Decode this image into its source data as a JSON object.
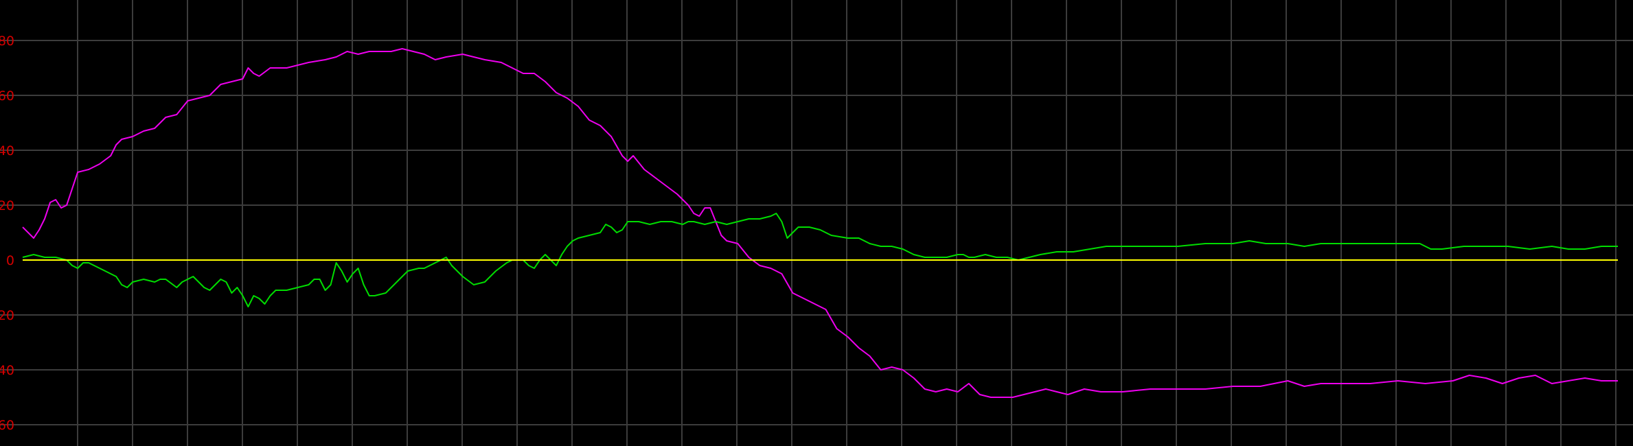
{
  "colors": {
    "background": "#000000",
    "grid": "#3c3c3c",
    "tick_labels": "#d40000",
    "zero_line": "#ffff00"
  },
  "chart_data": {
    "type": "line",
    "title": "",
    "xlabel": "",
    "ylabel": "",
    "grid": true,
    "legend": "none",
    "ylim": [
      -67,
      95
    ],
    "xlim": [
      0,
      290
    ],
    "y_ticks": [
      {
        "value": 80,
        "label": "80"
      },
      {
        "value": 60,
        "label": "60"
      },
      {
        "value": 40,
        "label": "40"
      },
      {
        "value": 20,
        "label": "20"
      },
      {
        "value": 0,
        "label": "0"
      },
      {
        "value": -20,
        "label": "20"
      },
      {
        "value": -40,
        "label": "40"
      },
      {
        "value": -60,
        "label": "60"
      }
    ],
    "x_grid_count": 29,
    "series": [
      {
        "color": "#ee00ee",
        "points": [
          [
            0,
            12
          ],
          [
            1,
            10
          ],
          [
            2,
            8
          ],
          [
            3,
            11
          ],
          [
            4,
            15
          ],
          [
            5,
            21
          ],
          [
            6,
            22
          ],
          [
            7,
            19
          ],
          [
            8,
            20
          ],
          [
            9,
            26
          ],
          [
            10,
            32
          ],
          [
            12,
            33
          ],
          [
            14,
            35
          ],
          [
            16,
            38
          ],
          [
            17,
            42
          ],
          [
            18,
            44
          ],
          [
            20,
            45
          ],
          [
            22,
            47
          ],
          [
            24,
            48
          ],
          [
            26,
            52
          ],
          [
            28,
            53
          ],
          [
            30,
            58
          ],
          [
            32,
            59
          ],
          [
            34,
            60
          ],
          [
            36,
            64
          ],
          [
            38,
            65
          ],
          [
            40,
            66
          ],
          [
            41,
            70
          ],
          [
            42,
            68
          ],
          [
            43,
            67
          ],
          [
            45,
            70
          ],
          [
            48,
            70
          ],
          [
            50,
            71
          ],
          [
            52,
            72
          ],
          [
            55,
            73
          ],
          [
            57,
            74
          ],
          [
            59,
            76
          ],
          [
            61,
            75
          ],
          [
            63,
            76
          ],
          [
            65,
            76
          ],
          [
            67,
            76
          ],
          [
            69,
            77
          ],
          [
            71,
            76
          ],
          [
            73,
            75
          ],
          [
            75,
            73
          ],
          [
            77,
            74
          ],
          [
            80,
            75
          ],
          [
            82,
            74
          ],
          [
            84,
            73
          ],
          [
            87,
            72
          ],
          [
            89,
            70
          ],
          [
            91,
            68
          ],
          [
            93,
            68
          ],
          [
            95,
            65
          ],
          [
            97,
            61
          ],
          [
            99,
            59
          ],
          [
            101,
            56
          ],
          [
            103,
            51
          ],
          [
            105,
            49
          ],
          [
            107,
            45
          ],
          [
            109,
            38
          ],
          [
            110,
            36
          ],
          [
            111,
            38
          ],
          [
            113,
            33
          ],
          [
            115,
            30
          ],
          [
            117,
            27
          ],
          [
            119,
            24
          ],
          [
            121,
            20
          ],
          [
            122,
            17
          ],
          [
            123,
            16
          ],
          [
            124,
            19
          ],
          [
            125,
            19
          ],
          [
            126,
            14
          ],
          [
            127,
            9
          ],
          [
            128,
            7
          ],
          [
            130,
            6
          ],
          [
            132,
            1
          ],
          [
            134,
            -2
          ],
          [
            136,
            -3
          ],
          [
            138,
            -5
          ],
          [
            140,
            -12
          ],
          [
            142,
            -14
          ],
          [
            144,
            -16
          ],
          [
            146,
            -18
          ],
          [
            148,
            -25
          ],
          [
            150,
            -28
          ],
          [
            152,
            -32
          ],
          [
            154,
            -35
          ],
          [
            156,
            -40
          ],
          [
            158,
            -39
          ],
          [
            160,
            -40
          ],
          [
            162,
            -43
          ],
          [
            164,
            -47
          ],
          [
            166,
            -48
          ],
          [
            168,
            -47
          ],
          [
            170,
            -48
          ],
          [
            172,
            -45
          ],
          [
            174,
            -49
          ],
          [
            176,
            -50
          ],
          [
            180,
            -50
          ],
          [
            184,
            -48
          ],
          [
            186,
            -47
          ],
          [
            188,
            -48
          ],
          [
            190,
            -49
          ],
          [
            193,
            -47
          ],
          [
            196,
            -48
          ],
          [
            200,
            -48
          ],
          [
            205,
            -47
          ],
          [
            210,
            -47
          ],
          [
            215,
            -47
          ],
          [
            220,
            -46
          ],
          [
            225,
            -46
          ],
          [
            230,
            -44
          ],
          [
            233,
            -46
          ],
          [
            236,
            -45
          ],
          [
            240,
            -45
          ],
          [
            245,
            -45
          ],
          [
            250,
            -44
          ],
          [
            255,
            -45
          ],
          [
            260,
            -44
          ],
          [
            263,
            -42
          ],
          [
            266,
            -43
          ],
          [
            269,
            -45
          ],
          [
            272,
            -43
          ],
          [
            275,
            -42
          ],
          [
            278,
            -45
          ],
          [
            281,
            -44
          ],
          [
            284,
            -43
          ],
          [
            287,
            -44
          ],
          [
            290,
            -44
          ]
        ]
      },
      {
        "color": "#00dd00",
        "points": [
          [
            0,
            1
          ],
          [
            2,
            2
          ],
          [
            4,
            1
          ],
          [
            6,
            1
          ],
          [
            8,
            0
          ],
          [
            9,
            -2
          ],
          [
            10,
            -3
          ],
          [
            11,
            -1
          ],
          [
            12,
            -1
          ],
          [
            13,
            -2
          ],
          [
            15,
            -4
          ],
          [
            17,
            -6
          ],
          [
            18,
            -9
          ],
          [
            19,
            -10
          ],
          [
            20,
            -8
          ],
          [
            22,
            -7
          ],
          [
            24,
            -8
          ],
          [
            25,
            -7
          ],
          [
            26,
            -7
          ],
          [
            28,
            -10
          ],
          [
            29,
            -8
          ],
          [
            30,
            -7
          ],
          [
            31,
            -6
          ],
          [
            32,
            -8
          ],
          [
            33,
            -10
          ],
          [
            34,
            -11
          ],
          [
            35,
            -9
          ],
          [
            36,
            -7
          ],
          [
            37,
            -8
          ],
          [
            38,
            -12
          ],
          [
            39,
            -10
          ],
          [
            40,
            -13
          ],
          [
            41,
            -17
          ],
          [
            42,
            -13
          ],
          [
            43,
            -14
          ],
          [
            44,
            -16
          ],
          [
            45,
            -13
          ],
          [
            46,
            -11
          ],
          [
            48,
            -11
          ],
          [
            50,
            -10
          ],
          [
            52,
            -9
          ],
          [
            53,
            -7
          ],
          [
            54,
            -7
          ],
          [
            55,
            -11
          ],
          [
            56,
            -9
          ],
          [
            57,
            -1
          ],
          [
            58,
            -4
          ],
          [
            59,
            -8
          ],
          [
            60,
            -5
          ],
          [
            61,
            -3
          ],
          [
            62,
            -9
          ],
          [
            63,
            -13
          ],
          [
            64,
            -13
          ],
          [
            66,
            -12
          ],
          [
            68,
            -8
          ],
          [
            70,
            -4
          ],
          [
            72,
            -3
          ],
          [
            73,
            -3
          ],
          [
            74,
            -2
          ],
          [
            75,
            -1
          ],
          [
            76,
            0
          ],
          [
            77,
            1
          ],
          [
            78,
            -2
          ],
          [
            80,
            -6
          ],
          [
            82,
            -9
          ],
          [
            84,
            -8
          ],
          [
            86,
            -4
          ],
          [
            88,
            -1
          ],
          [
            89,
            0
          ],
          [
            90,
            0
          ],
          [
            91,
            0
          ],
          [
            92,
            -2
          ],
          [
            93,
            -3
          ],
          [
            94,
            0
          ],
          [
            95,
            2
          ],
          [
            96,
            0
          ],
          [
            97,
            -2
          ],
          [
            98,
            2
          ],
          [
            99,
            5
          ],
          [
            100,
            7
          ],
          [
            101,
            8
          ],
          [
            103,
            9
          ],
          [
            105,
            10
          ],
          [
            106,
            13
          ],
          [
            107,
            12
          ],
          [
            108,
            10
          ],
          [
            109,
            11
          ],
          [
            110,
            14
          ],
          [
            112,
            14
          ],
          [
            114,
            13
          ],
          [
            116,
            14
          ],
          [
            118,
            14
          ],
          [
            120,
            13
          ],
          [
            121,
            14
          ],
          [
            122,
            14
          ],
          [
            124,
            13
          ],
          [
            126,
            14
          ],
          [
            128,
            13
          ],
          [
            130,
            14
          ],
          [
            132,
            15
          ],
          [
            134,
            15
          ],
          [
            136,
            16
          ],
          [
            137,
            17
          ],
          [
            138,
            14
          ],
          [
            139,
            8
          ],
          [
            140,
            10
          ],
          [
            141,
            12
          ],
          [
            143,
            12
          ],
          [
            145,
            11
          ],
          [
            147,
            9
          ],
          [
            150,
            8
          ],
          [
            152,
            8
          ],
          [
            154,
            6
          ],
          [
            156,
            5
          ],
          [
            158,
            5
          ],
          [
            160,
            4
          ],
          [
            162,
            2
          ],
          [
            164,
            1
          ],
          [
            166,
            1
          ],
          [
            168,
            1
          ],
          [
            170,
            2
          ],
          [
            171,
            2
          ],
          [
            172,
            1
          ],
          [
            173,
            1
          ],
          [
            175,
            2
          ],
          [
            177,
            1
          ],
          [
            179,
            1
          ],
          [
            181,
            0
          ],
          [
            183,
            1
          ],
          [
            185,
            2
          ],
          [
            188,
            3
          ],
          [
            191,
            3
          ],
          [
            194,
            4
          ],
          [
            197,
            5
          ],
          [
            200,
            5
          ],
          [
            205,
            5
          ],
          [
            210,
            5
          ],
          [
            215,
            6
          ],
          [
            220,
            6
          ],
          [
            223,
            7
          ],
          [
            226,
            6
          ],
          [
            230,
            6
          ],
          [
            233,
            5
          ],
          [
            236,
            6
          ],
          [
            240,
            6
          ],
          [
            245,
            6
          ],
          [
            250,
            6
          ],
          [
            254,
            6
          ],
          [
            256,
            4
          ],
          [
            258,
            4
          ],
          [
            262,
            5
          ],
          [
            266,
            5
          ],
          [
            270,
            5
          ],
          [
            274,
            4
          ],
          [
            278,
            5
          ],
          [
            281,
            4
          ],
          [
            284,
            4
          ],
          [
            287,
            5
          ],
          [
            290,
            5
          ]
        ]
      },
      {
        "color": "#ffff00",
        "points": [
          [
            0,
            0
          ],
          [
            290,
            0
          ]
        ]
      }
    ]
  }
}
